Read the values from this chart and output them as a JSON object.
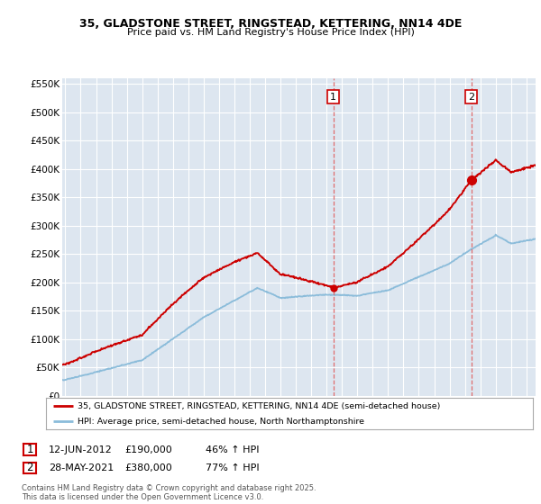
{
  "title1": "35, GLADSTONE STREET, RINGSTEAD, KETTERING, NN14 4DE",
  "title2": "Price paid vs. HM Land Registry's House Price Index (HPI)",
  "ylim": [
    0,
    560000
  ],
  "yticks": [
    0,
    50000,
    100000,
    150000,
    200000,
    250000,
    300000,
    350000,
    400000,
    450000,
    500000,
    550000
  ],
  "ytick_labels": [
    "£0",
    "£50K",
    "£100K",
    "£150K",
    "£200K",
    "£250K",
    "£300K",
    "£350K",
    "£400K",
    "£450K",
    "£500K",
    "£550K"
  ],
  "xlim_start": 1994.8,
  "xlim_end": 2025.6,
  "sale1_date": 2012.44,
  "sale1_price": 190000,
  "sale1_label": "12-JUN-2012",
  "sale1_amount": "£190,000",
  "sale1_pct": "46% ↑ HPI",
  "sale2_date": 2021.41,
  "sale2_price": 380000,
  "sale2_label": "28-MAY-2021",
  "sale2_amount": "£380,000",
  "sale2_pct": "77% ↑ HPI",
  "red_color": "#cc0000",
  "blue_color": "#8bbcda",
  "vline_color": "#e06060",
  "background_color": "#dde6f0",
  "grid_color": "#ffffff",
  "legend1": "35, GLADSTONE STREET, RINGSTEAD, KETTERING, NN14 4DE (semi-detached house)",
  "legend2": "HPI: Average price, semi-detached house, North Northamptonshire",
  "footnote": "Contains HM Land Registry data © Crown copyright and database right 2025.\nThis data is licensed under the Open Government Licence v3.0."
}
